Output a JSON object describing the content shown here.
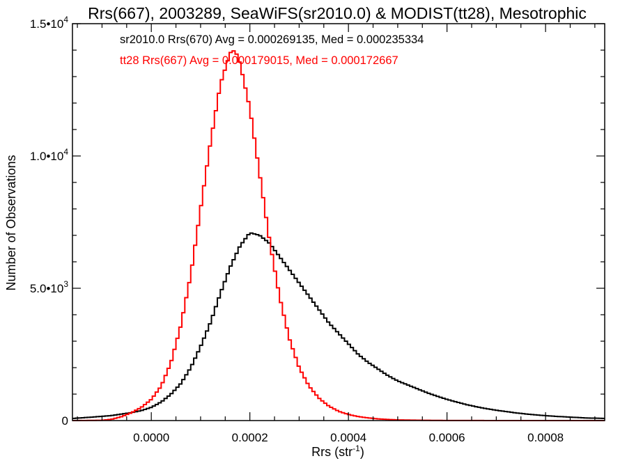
{
  "chart_data": {
    "type": "histogram",
    "title": "Rrs(667), 2003289, SeaWiFS(sr2010.0) & MODIST(tt28), Mesotrophic",
    "xlabel": "Rrs (str",
    "xlabel_sup": "-1",
    "xlabel_close": ")",
    "ylabel": "Number of Observations",
    "xlim": [
      -0.00016,
      0.00092
    ],
    "ylim": [
      0,
      15000
    ],
    "x_ticks": [
      {
        "value": 0.0,
        "label": "0.0000"
      },
      {
        "value": 0.0002,
        "label": "0.0002"
      },
      {
        "value": 0.0004,
        "label": "0.0004"
      },
      {
        "value": 0.0006,
        "label": "0.0006"
      },
      {
        "value": 0.0008,
        "label": "0.0008"
      }
    ],
    "y_ticks": [
      {
        "value": 0,
        "base": "0",
        "exp": ""
      },
      {
        "value": 5000,
        "base": "5.0•10",
        "exp": "3"
      },
      {
        "value": 10000,
        "base": "1.0•10",
        "exp": "4"
      },
      {
        "value": 15000,
        "base": "1.5•10",
        "exp": "4"
      }
    ],
    "series": [
      {
        "name": "sr2010.0 Rrs(670)",
        "color": "#000000",
        "annotation": "sr2010.0 Rrs(670) Avg = 0.000269135, Med = 0.000235334",
        "points": [
          [
            -0.00016,
            80
          ],
          [
            -0.00012,
            130
          ],
          [
            -8e-05,
            190
          ],
          [
            -4e-05,
            300
          ],
          [
            -2e-05,
            380
          ],
          [
            0.0,
            500
          ],
          [
            2e-05,
            700
          ],
          [
            4e-05,
            1000
          ],
          [
            6e-05,
            1400
          ],
          [
            8e-05,
            2000
          ],
          [
            0.0001,
            2800
          ],
          [
            0.00012,
            3700
          ],
          [
            0.00014,
            4800
          ],
          [
            0.00016,
            5800
          ],
          [
            0.00018,
            6600
          ],
          [
            0.0002,
            7100
          ],
          [
            0.00022,
            7000
          ],
          [
            0.00024,
            6700
          ],
          [
            0.00026,
            6200
          ],
          [
            0.00028,
            5700
          ],
          [
            0.0003,
            5200
          ],
          [
            0.00032,
            4700
          ],
          [
            0.00034,
            4200
          ],
          [
            0.00036,
            3700
          ],
          [
            0.00038,
            3300
          ],
          [
            0.0004,
            2900
          ],
          [
            0.00042,
            2500
          ],
          [
            0.00044,
            2200
          ],
          [
            0.00046,
            1950
          ],
          [
            0.00048,
            1700
          ],
          [
            0.0005,
            1500
          ],
          [
            0.00052,
            1350
          ],
          [
            0.00054,
            1200
          ],
          [
            0.00056,
            1050
          ],
          [
            0.00058,
            920
          ],
          [
            0.0006,
            800
          ],
          [
            0.00062,
            700
          ],
          [
            0.00064,
            600
          ],
          [
            0.00066,
            520
          ],
          [
            0.00068,
            450
          ],
          [
            0.0007,
            390
          ],
          [
            0.00072,
            340
          ],
          [
            0.00074,
            290
          ],
          [
            0.00076,
            250
          ],
          [
            0.00078,
            215
          ],
          [
            0.0008,
            185
          ],
          [
            0.00082,
            160
          ],
          [
            0.00084,
            140
          ],
          [
            0.00086,
            120
          ],
          [
            0.00088,
            100
          ],
          [
            0.0009,
            90
          ],
          [
            0.00092,
            80
          ]
        ]
      },
      {
        "name": "tt28 Rrs(667)",
        "color": "#ff0000",
        "annotation": "tt28 Rrs(667) Avg = 0.000179015, Med = 0.000172667",
        "points": [
          [
            -0.00016,
            0
          ],
          [
            -0.0001,
            10
          ],
          [
            -8e-05,
            50
          ],
          [
            -6e-05,
            150
          ],
          [
            -4e-05,
            300
          ],
          [
            -2e-05,
            500
          ],
          [
            0.0,
            800
          ],
          [
            2e-05,
            1300
          ],
          [
            4e-05,
            2200
          ],
          [
            6e-05,
            3600
          ],
          [
            8e-05,
            5500
          ],
          [
            0.0001,
            8000
          ],
          [
            0.00012,
            10500
          ],
          [
            0.00014,
            12700
          ],
          [
            0.00016,
            13900
          ],
          [
            0.00017,
            14000
          ],
          [
            0.00018,
            13500
          ],
          [
            0.0002,
            11800
          ],
          [
            0.00022,
            9300
          ],
          [
            0.00024,
            6800
          ],
          [
            0.00026,
            4700
          ],
          [
            0.00028,
            3100
          ],
          [
            0.0003,
            2000
          ],
          [
            0.00032,
            1300
          ],
          [
            0.00034,
            850
          ],
          [
            0.00036,
            550
          ],
          [
            0.00038,
            350
          ],
          [
            0.0004,
            230
          ],
          [
            0.00042,
            150
          ],
          [
            0.00044,
            100
          ],
          [
            0.00046,
            65
          ],
          [
            0.00048,
            40
          ],
          [
            0.0005,
            25
          ],
          [
            0.00055,
            10
          ],
          [
            0.0006,
            4
          ],
          [
            0.0007,
            1
          ],
          [
            0.00092,
            0
          ]
        ]
      }
    ],
    "grid": false,
    "legend": "top-left annotations"
  }
}
